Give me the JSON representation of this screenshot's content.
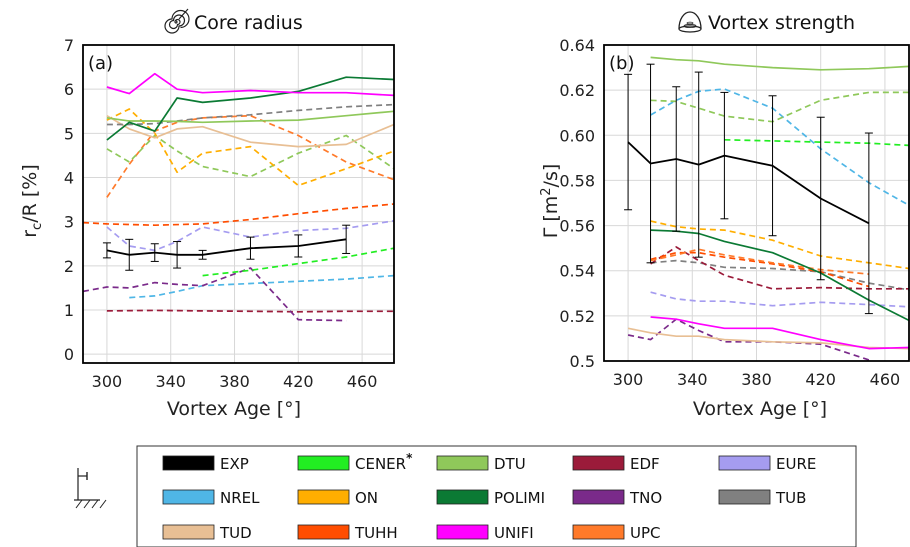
{
  "chart_data": [
    {
      "type": "line",
      "panel_label": "(a)",
      "title": "Core radius",
      "icon": "spiral-icon",
      "xlabel": "Vortex Age [°]",
      "ylabel_main": "r",
      "ylabel_sub": "c",
      "ylabel_rest": "/R [%]",
      "xlim": [
        285,
        480
      ],
      "ylim": [
        -0.2,
        7
      ],
      "xticks": [
        300,
        340,
        380,
        420,
        460
      ],
      "yticks": [
        0,
        1,
        2,
        3,
        4,
        5,
        6,
        7
      ],
      "grid": true,
      "series": [
        {
          "name": "EXP",
          "color": "#000000",
          "dash": false,
          "x": [
            300,
            314,
            330,
            344,
            360,
            390,
            420,
            450
          ],
          "y": [
            2.35,
            2.25,
            2.3,
            2.25,
            2.25,
            2.4,
            2.45,
            2.6
          ],
          "err": [
            0.17,
            0.35,
            0.2,
            0.3,
            0.1,
            0.25,
            0.25,
            0.32
          ]
        },
        {
          "name": "UNIFI",
          "color": "#ff00ff",
          "dash": false,
          "x": [
            300,
            314,
            330,
            344,
            360,
            390,
            420,
            450,
            480
          ],
          "y": [
            6.05,
            5.9,
            6.35,
            6.0,
            5.92,
            5.97,
            5.92,
            5.92,
            5.86
          ]
        },
        {
          "name": "POLIMI",
          "color": "#0b7a34",
          "dash": false,
          "x": [
            300,
            314,
            330,
            344,
            360,
            390,
            420,
            450,
            480
          ],
          "y": [
            4.85,
            5.25,
            5.05,
            5.8,
            5.7,
            5.8,
            5.95,
            6.27,
            6.22
          ]
        },
        {
          "name": "DTU",
          "color": "#8fc85a",
          "dash": false,
          "x": [
            300,
            314,
            330,
            344,
            360,
            390,
            420,
            450,
            480
          ],
          "y": [
            5.35,
            5.28,
            5.28,
            5.27,
            5.25,
            5.28,
            5.3,
            5.4,
            5.5
          ]
        },
        {
          "name": "TUB",
          "color": "#808080",
          "dash": true,
          "x": [
            300,
            314,
            330,
            344,
            360,
            390,
            420,
            450,
            480
          ],
          "y": [
            5.2,
            5.2,
            5.22,
            5.28,
            5.35,
            5.42,
            5.52,
            5.6,
            5.65
          ]
        },
        {
          "name": "TUD",
          "color": "#e8bf94",
          "dash": false,
          "x": [
            300,
            314,
            330,
            344,
            360,
            390,
            420,
            450,
            480
          ],
          "y": [
            5.4,
            5.1,
            4.9,
            5.1,
            5.15,
            4.8,
            4.7,
            4.75,
            5.2
          ]
        },
        {
          "name": "ON",
          "color": "#ffae00",
          "dash": true,
          "x": [
            300,
            314,
            330,
            344,
            360,
            390,
            420,
            450,
            480
          ],
          "y": [
            5.3,
            5.55,
            5.0,
            4.12,
            4.55,
            4.7,
            3.82,
            4.2,
            4.6
          ]
        },
        {
          "name": "DTU",
          "color": "#8fc85a",
          "dash": true,
          "x": [
            300,
            314,
            330,
            344,
            360,
            390,
            420,
            450,
            480
          ],
          "y": [
            4.65,
            4.35,
            4.95,
            4.6,
            4.25,
            4.02,
            4.55,
            4.95,
            4.2
          ]
        },
        {
          "name": "UPC",
          "color": "#ff7a2a",
          "dash": true,
          "x": [
            300,
            314,
            330,
            344,
            360,
            390,
            420,
            450,
            480
          ],
          "y": [
            3.55,
            4.3,
            5.05,
            5.25,
            5.35,
            5.4,
            4.95,
            4.35,
            3.95
          ]
        },
        {
          "name": "TUHH",
          "color": "#ff4d00",
          "dash": true,
          "x": [
            285,
            300,
            330,
            360,
            390,
            420,
            450,
            480
          ],
          "y": [
            2.98,
            2.95,
            2.92,
            2.95,
            3.05,
            3.18,
            3.3,
            3.4
          ]
        },
        {
          "name": "EURE",
          "color": "#a59cf0",
          "dash": true,
          "x": [
            300,
            314,
            330,
            344,
            360,
            390,
            420,
            450,
            480
          ],
          "y": [
            2.88,
            2.45,
            2.35,
            2.55,
            2.88,
            2.65,
            2.8,
            2.85,
            3.02
          ]
        },
        {
          "name": "CENER*",
          "color": "#22ee22",
          "dash": true,
          "x": [
            360,
            390,
            420,
            450,
            480
          ],
          "y": [
            1.78,
            1.9,
            2.05,
            2.2,
            2.4
          ]
        },
        {
          "name": "TNO",
          "color": "#7a2a8a",
          "dash": true,
          "x": [
            285,
            300,
            314,
            330,
            344,
            360,
            390,
            420,
            450
          ],
          "y": [
            1.42,
            1.52,
            1.5,
            1.62,
            1.58,
            1.55,
            1.95,
            0.78,
            0.76
          ]
        },
        {
          "name": "NREL",
          "color": "#4fb6e6",
          "dash": true,
          "x": [
            314,
            330,
            344,
            360,
            390,
            420,
            450,
            480
          ],
          "y": [
            1.28,
            1.32,
            1.42,
            1.55,
            1.6,
            1.65,
            1.7,
            1.78
          ]
        },
        {
          "name": "EDF",
          "color": "#9b1b3a",
          "dash": true,
          "x": [
            300,
            330,
            360,
            390,
            420,
            450,
            480
          ],
          "y": [
            0.98,
            0.99,
            0.98,
            0.97,
            0.96,
            0.97,
            0.97
          ]
        }
      ]
    },
    {
      "type": "line",
      "panel_label": "(b)",
      "title": "Vortex strength",
      "icon": "vortex-bell-icon",
      "xlabel": "Vortex Age [°]",
      "ylabel_main": "Γ [m",
      "ylabel_sup": "2",
      "ylabel_rest": "/s]",
      "xlim": [
        285,
        475
      ],
      "ylim": [
        0.5,
        0.64
      ],
      "xticks": [
        300,
        340,
        380,
        420,
        460
      ],
      "yticks": [
        0.5,
        0.52,
        0.54,
        0.56,
        0.58,
        0.6,
        0.62,
        0.64
      ],
      "ytick_labels": [
        "0.5",
        "0.52",
        "0.54",
        "0.56",
        "0.58",
        "0.60",
        "0.62",
        "0.64"
      ],
      "grid": true,
      "series": [
        {
          "name": "EXP",
          "color": "#000000",
          "dash": false,
          "x": [
            300,
            314,
            330,
            344,
            360,
            390,
            420,
            450
          ],
          "y": [
            0.597,
            0.5875,
            0.5895,
            0.587,
            0.591,
            0.5865,
            0.572,
            0.561
          ],
          "err": [
            0.03,
            0.044,
            0.032,
            0.041,
            0.028,
            0.031,
            0.036,
            0.04
          ]
        },
        {
          "name": "DTU",
          "color": "#8fc85a",
          "dash": false,
          "x": [
            314,
            330,
            344,
            360,
            390,
            420,
            450,
            475
          ],
          "y": [
            0.6345,
            0.6335,
            0.633,
            0.6315,
            0.63,
            0.629,
            0.6295,
            0.6305
          ]
        },
        {
          "name": "DTU",
          "color": "#8fc85a",
          "dash": true,
          "x": [
            314,
            330,
            344,
            360,
            390,
            420,
            450,
            475
          ],
          "y": [
            0.6155,
            0.615,
            0.612,
            0.6085,
            0.606,
            0.6155,
            0.619,
            0.619
          ]
        },
        {
          "name": "NREL",
          "color": "#4fb6e6",
          "dash": true,
          "x": [
            314,
            330,
            344,
            360,
            390,
            420,
            450,
            475
          ],
          "y": [
            0.609,
            0.6155,
            0.6195,
            0.6205,
            0.612,
            0.594,
            0.579,
            0.569
          ]
        },
        {
          "name": "CENER*",
          "color": "#22ee22",
          "dash": true,
          "x": [
            360,
            390,
            420,
            450,
            475
          ],
          "y": [
            0.598,
            0.5975,
            0.597,
            0.5965,
            0.5955
          ]
        },
        {
          "name": "ON",
          "color": "#ffae00",
          "dash": true,
          "x": [
            314,
            330,
            344,
            360,
            390,
            420,
            450,
            475
          ],
          "y": [
            0.562,
            0.5595,
            0.5585,
            0.558,
            0.5535,
            0.5465,
            0.5435,
            0.541
          ]
        },
        {
          "name": "POLIMI",
          "color": "#0b7a34",
          "dash": false,
          "x": [
            314,
            330,
            344,
            360,
            390,
            420,
            450,
            475
          ],
          "y": [
            0.558,
            0.5575,
            0.5565,
            0.553,
            0.548,
            0.539,
            0.527,
            0.518
          ]
        },
        {
          "name": "UPC",
          "color": "#ff7a2a",
          "dash": true,
          "x": [
            314,
            330,
            344,
            360,
            390,
            420,
            450
          ],
          "y": [
            0.5445,
            0.547,
            0.5495,
            0.547,
            0.5435,
            0.5405,
            0.5385
          ]
        },
        {
          "name": "TUHH",
          "color": "#ff4d00",
          "dash": true,
          "x": [
            314,
            330,
            344,
            360,
            390,
            420,
            450
          ],
          "y": [
            0.545,
            0.548,
            0.548,
            0.546,
            0.543,
            0.5395,
            0.533
          ]
        },
        {
          "name": "EDF",
          "color": "#9b1b3a",
          "dash": true,
          "x": [
            314,
            330,
            344,
            360,
            390,
            420,
            450,
            475
          ],
          "y": [
            0.543,
            0.5505,
            0.5445,
            0.538,
            0.532,
            0.5325,
            0.532,
            0.532
          ]
        },
        {
          "name": "TUB",
          "color": "#808080",
          "dash": true,
          "x": [
            314,
            330,
            344,
            360,
            390,
            420,
            450,
            475
          ],
          "y": [
            0.5435,
            0.5445,
            0.5435,
            0.5415,
            0.541,
            0.5395,
            0.5345,
            0.5315
          ]
        },
        {
          "name": "EURE",
          "color": "#a59cf0",
          "dash": true,
          "x": [
            314,
            330,
            344,
            360,
            390,
            420,
            450,
            475
          ],
          "y": [
            0.5305,
            0.5275,
            0.5265,
            0.5265,
            0.5245,
            0.526,
            0.525,
            0.524
          ]
        },
        {
          "name": "UNIFI",
          "color": "#ff00ff",
          "dash": false,
          "x": [
            314,
            330,
            344,
            360,
            390,
            420,
            450,
            475
          ],
          "y": [
            0.5195,
            0.5185,
            0.5165,
            0.5145,
            0.5145,
            0.5095,
            0.5055,
            0.506
          ]
        },
        {
          "name": "TUD",
          "color": "#e8bf94",
          "dash": false,
          "x": [
            300,
            314,
            330,
            344,
            360,
            390,
            420,
            450,
            475
          ],
          "y": [
            0.5145,
            0.5125,
            0.511,
            0.511,
            0.5095,
            0.5085,
            0.508,
            0.506,
            0.5055
          ]
        },
        {
          "name": "TNO",
          "color": "#7a2a8a",
          "dash": true,
          "x": [
            300,
            314,
            330,
            344,
            360,
            390,
            420,
            450
          ],
          "y": [
            0.5115,
            0.5095,
            0.5185,
            0.5135,
            0.5085,
            0.5085,
            0.5075,
            0.5005
          ]
        }
      ]
    }
  ],
  "legend": {
    "items": [
      {
        "label": "EXP",
        "color": "#000000"
      },
      {
        "label": "CENER",
        "sup": "*",
        "color": "#22ee22"
      },
      {
        "label": "DTU",
        "color": "#8fc85a"
      },
      {
        "label": "EDF",
        "color": "#9b1b3a"
      },
      {
        "label": "EURE",
        "color": "#a59cf0"
      },
      {
        "label": "NREL",
        "color": "#4fb6e6"
      },
      {
        "label": "ON",
        "color": "#ffae00"
      },
      {
        "label": "POLIMI",
        "color": "#0b7a34"
      },
      {
        "label": "TNO",
        "color": "#7a2a8a"
      },
      {
        "label": "TUB",
        "color": "#808080"
      },
      {
        "label": "TUD",
        "color": "#e8bf94"
      },
      {
        "label": "TUHH",
        "color": "#ff4d00"
      },
      {
        "label": "UNIFI",
        "color": "#ff00ff"
      },
      {
        "label": "UPC",
        "color": "#ff7a2a"
      }
    ],
    "icon": "wind-turbine-tower-icon"
  }
}
